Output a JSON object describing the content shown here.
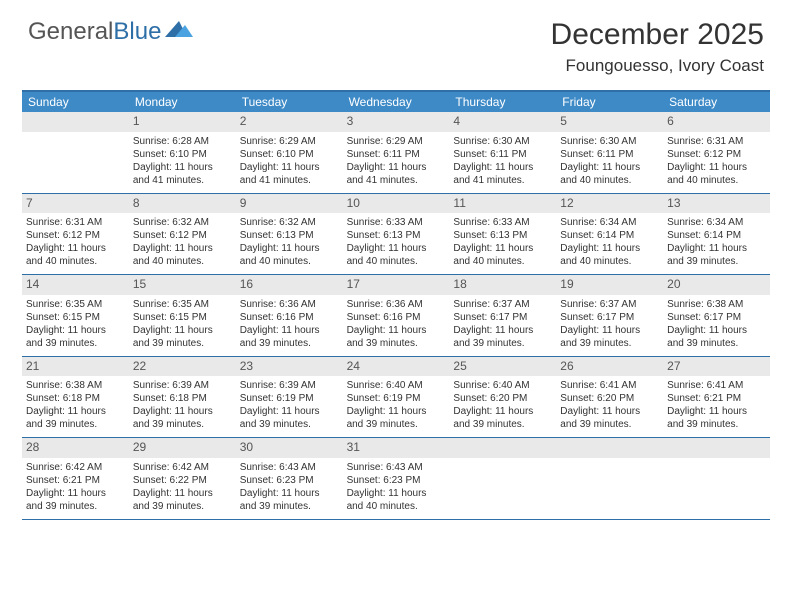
{
  "logo": {
    "text1": "General",
    "text2": "Blue"
  },
  "title": "December 2025",
  "location": "Foungouesso, Ivory Coast",
  "colors": {
    "header_bar": "#3d8ac7",
    "border": "#2f6fa7",
    "daynum_bg": "#e9e9e9",
    "text": "#333333",
    "logo_gray": "#555555",
    "logo_blue": "#2f6fa7",
    "background": "#ffffff"
  },
  "day_names": [
    "Sunday",
    "Monday",
    "Tuesday",
    "Wednesday",
    "Thursday",
    "Friday",
    "Saturday"
  ],
  "weeks": [
    [
      {
        "n": "",
        "sr": "",
        "ss": "",
        "dl": ""
      },
      {
        "n": "1",
        "sr": "Sunrise: 6:28 AM",
        "ss": "Sunset: 6:10 PM",
        "dl": "Daylight: 11 hours and 41 minutes."
      },
      {
        "n": "2",
        "sr": "Sunrise: 6:29 AM",
        "ss": "Sunset: 6:10 PM",
        "dl": "Daylight: 11 hours and 41 minutes."
      },
      {
        "n": "3",
        "sr": "Sunrise: 6:29 AM",
        "ss": "Sunset: 6:11 PM",
        "dl": "Daylight: 11 hours and 41 minutes."
      },
      {
        "n": "4",
        "sr": "Sunrise: 6:30 AM",
        "ss": "Sunset: 6:11 PM",
        "dl": "Daylight: 11 hours and 41 minutes."
      },
      {
        "n": "5",
        "sr": "Sunrise: 6:30 AM",
        "ss": "Sunset: 6:11 PM",
        "dl": "Daylight: 11 hours and 40 minutes."
      },
      {
        "n": "6",
        "sr": "Sunrise: 6:31 AM",
        "ss": "Sunset: 6:12 PM",
        "dl": "Daylight: 11 hours and 40 minutes."
      }
    ],
    [
      {
        "n": "7",
        "sr": "Sunrise: 6:31 AM",
        "ss": "Sunset: 6:12 PM",
        "dl": "Daylight: 11 hours and 40 minutes."
      },
      {
        "n": "8",
        "sr": "Sunrise: 6:32 AM",
        "ss": "Sunset: 6:12 PM",
        "dl": "Daylight: 11 hours and 40 minutes."
      },
      {
        "n": "9",
        "sr": "Sunrise: 6:32 AM",
        "ss": "Sunset: 6:13 PM",
        "dl": "Daylight: 11 hours and 40 minutes."
      },
      {
        "n": "10",
        "sr": "Sunrise: 6:33 AM",
        "ss": "Sunset: 6:13 PM",
        "dl": "Daylight: 11 hours and 40 minutes."
      },
      {
        "n": "11",
        "sr": "Sunrise: 6:33 AM",
        "ss": "Sunset: 6:13 PM",
        "dl": "Daylight: 11 hours and 40 minutes."
      },
      {
        "n": "12",
        "sr": "Sunrise: 6:34 AM",
        "ss": "Sunset: 6:14 PM",
        "dl": "Daylight: 11 hours and 40 minutes."
      },
      {
        "n": "13",
        "sr": "Sunrise: 6:34 AM",
        "ss": "Sunset: 6:14 PM",
        "dl": "Daylight: 11 hours and 39 minutes."
      }
    ],
    [
      {
        "n": "14",
        "sr": "Sunrise: 6:35 AM",
        "ss": "Sunset: 6:15 PM",
        "dl": "Daylight: 11 hours and 39 minutes."
      },
      {
        "n": "15",
        "sr": "Sunrise: 6:35 AM",
        "ss": "Sunset: 6:15 PM",
        "dl": "Daylight: 11 hours and 39 minutes."
      },
      {
        "n": "16",
        "sr": "Sunrise: 6:36 AM",
        "ss": "Sunset: 6:16 PM",
        "dl": "Daylight: 11 hours and 39 minutes."
      },
      {
        "n": "17",
        "sr": "Sunrise: 6:36 AM",
        "ss": "Sunset: 6:16 PM",
        "dl": "Daylight: 11 hours and 39 minutes."
      },
      {
        "n": "18",
        "sr": "Sunrise: 6:37 AM",
        "ss": "Sunset: 6:17 PM",
        "dl": "Daylight: 11 hours and 39 minutes."
      },
      {
        "n": "19",
        "sr": "Sunrise: 6:37 AM",
        "ss": "Sunset: 6:17 PM",
        "dl": "Daylight: 11 hours and 39 minutes."
      },
      {
        "n": "20",
        "sr": "Sunrise: 6:38 AM",
        "ss": "Sunset: 6:17 PM",
        "dl": "Daylight: 11 hours and 39 minutes."
      }
    ],
    [
      {
        "n": "21",
        "sr": "Sunrise: 6:38 AM",
        "ss": "Sunset: 6:18 PM",
        "dl": "Daylight: 11 hours and 39 minutes."
      },
      {
        "n": "22",
        "sr": "Sunrise: 6:39 AM",
        "ss": "Sunset: 6:18 PM",
        "dl": "Daylight: 11 hours and 39 minutes."
      },
      {
        "n": "23",
        "sr": "Sunrise: 6:39 AM",
        "ss": "Sunset: 6:19 PM",
        "dl": "Daylight: 11 hours and 39 minutes."
      },
      {
        "n": "24",
        "sr": "Sunrise: 6:40 AM",
        "ss": "Sunset: 6:19 PM",
        "dl": "Daylight: 11 hours and 39 minutes."
      },
      {
        "n": "25",
        "sr": "Sunrise: 6:40 AM",
        "ss": "Sunset: 6:20 PM",
        "dl": "Daylight: 11 hours and 39 minutes."
      },
      {
        "n": "26",
        "sr": "Sunrise: 6:41 AM",
        "ss": "Sunset: 6:20 PM",
        "dl": "Daylight: 11 hours and 39 minutes."
      },
      {
        "n": "27",
        "sr": "Sunrise: 6:41 AM",
        "ss": "Sunset: 6:21 PM",
        "dl": "Daylight: 11 hours and 39 minutes."
      }
    ],
    [
      {
        "n": "28",
        "sr": "Sunrise: 6:42 AM",
        "ss": "Sunset: 6:21 PM",
        "dl": "Daylight: 11 hours and 39 minutes."
      },
      {
        "n": "29",
        "sr": "Sunrise: 6:42 AM",
        "ss": "Sunset: 6:22 PM",
        "dl": "Daylight: 11 hours and 39 minutes."
      },
      {
        "n": "30",
        "sr": "Sunrise: 6:43 AM",
        "ss": "Sunset: 6:23 PM",
        "dl": "Daylight: 11 hours and 39 minutes."
      },
      {
        "n": "31",
        "sr": "Sunrise: 6:43 AM",
        "ss": "Sunset: 6:23 PM",
        "dl": "Daylight: 11 hours and 40 minutes."
      },
      {
        "n": "",
        "sr": "",
        "ss": "",
        "dl": ""
      },
      {
        "n": "",
        "sr": "",
        "ss": "",
        "dl": ""
      },
      {
        "n": "",
        "sr": "",
        "ss": "",
        "dl": ""
      }
    ]
  ]
}
